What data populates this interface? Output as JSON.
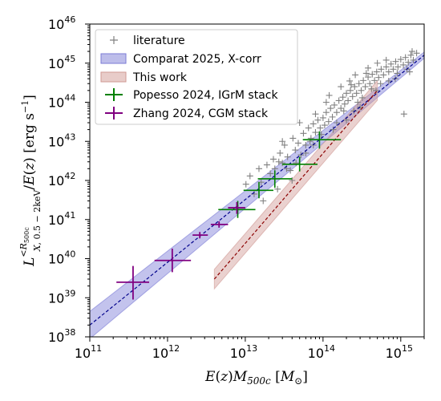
{
  "chart_data": {
    "type": "scatter",
    "x_scale": "log",
    "y_scale": "log",
    "xlim": [
      100000000000.0,
      2000000000000000.0
    ],
    "ylim": [
      1e+38,
      1e+46
    ],
    "x_ticks": [
      {
        "base": "10",
        "exp": "11",
        "value": 100000000000.0
      },
      {
        "base": "10",
        "exp": "12",
        "value": 1000000000000.0
      },
      {
        "base": "10",
        "exp": "13",
        "value": 10000000000000.0
      },
      {
        "base": "10",
        "exp": "14",
        "value": 100000000000000.0
      },
      {
        "base": "10",
        "exp": "15",
        "value": 1000000000000000.0
      }
    ],
    "y_ticks": [
      {
        "base": "10",
        "exp": "38",
        "value": 1e+38
      },
      {
        "base": "10",
        "exp": "39",
        "value": 1e+39
      },
      {
        "base": "10",
        "exp": "40",
        "value": 1e+40
      },
      {
        "base": "10",
        "exp": "41",
        "value": 1e+41
      },
      {
        "base": "10",
        "exp": "42",
        "value": 1e+42
      },
      {
        "base": "10",
        "exp": "43",
        "value": 1e+43
      },
      {
        "base": "10",
        "exp": "44",
        "value": 1e+44
      },
      {
        "base": "10",
        "exp": "45",
        "value": 1e+45
      },
      {
        "base": "10",
        "exp": "46",
        "value": 1e+46
      }
    ],
    "xlabel": "E(z)M_500c [M_⊙]",
    "ylabel": "L_X, 0.5-2keV^(<R_500c) / E(z) [erg s^-1]",
    "legend_position": "top-left",
    "legend": [
      {
        "label": "literature",
        "marker": "plus",
        "color": "#808080"
      },
      {
        "label": "Comparat 2025, X-corr",
        "marker": "band",
        "color": "#7b7bd6"
      },
      {
        "label": "This work",
        "marker": "band",
        "color": "#d19a94"
      },
      {
        "label": "Popesso 2024, IGrM stack",
        "marker": "errorbar",
        "color": "#008000"
      },
      {
        "label": "Zhang 2024, CGM stack",
        "marker": "errorbar",
        "color": "#800080"
      }
    ],
    "comparat_band": {
      "x": [
        100000000000.0,
        2000000000000000.0
      ],
      "y_center": [
        2e+38,
        1.6e+45
      ],
      "dex_halfwidth": [
        0.35,
        0.08
      ],
      "line_color": "#00008b",
      "fill_color": "#7b7bd6"
    },
    "this_work_band": {
      "x": [
        4000000000000.0,
        500000000000000.0
      ],
      "y_center": [
        3e+39,
        2e+44
      ],
      "dex_halfwidth": 0.25,
      "line_color": "#8b0000",
      "fill_color": "#d19a94"
    },
    "popesso_points": [
      {
        "x": 8000000000000.0,
        "y": 1.8e+41,
        "xerr_lo": 4500000000000.0,
        "xerr_hi": 13500000000000.0,
        "yerr_lo": 1.1e+41,
        "yerr_hi": 3e+41
      },
      {
        "x": 15000000000000.0,
        "y": 5.6e+41,
        "xerr_lo": 9500000000000.0,
        "xerr_hi": 23000000000000.0,
        "yerr_lo": 3.5e+41,
        "yerr_hi": 9e+41
      },
      {
        "x": 24000000000000.0,
        "y": 1.1e+42,
        "xerr_lo": 14500000000000.0,
        "xerr_hi": 40000000000000.0,
        "yerr_lo": 6.5e+41,
        "yerr_hi": 1.8e+42
      },
      {
        "x": 50000000000000.0,
        "y": 2.6e+42,
        "xerr_lo": 30000000000000.0,
        "xerr_hi": 85000000000000.0,
        "yerr_lo": 1.7e+42,
        "yerr_hi": 4e+42
      },
      {
        "x": 90000000000000.0,
        "y": 1.1e+43,
        "xerr_lo": 55000000000000.0,
        "xerr_hi": 170000000000000.0,
        "yerr_lo": 6.5e+42,
        "yerr_hi": 1.8e+43
      }
    ],
    "zhang_points": [
      {
        "x": 360000000000.0,
        "y": 2.5e+39,
        "xerr_lo": 220000000000.0,
        "xerr_hi": 580000000000.0,
        "yerr_lo": 9e+38,
        "yerr_hi": 6.5e+39
      },
      {
        "x": 1150000000000.0,
        "y": 9e+39,
        "xerr_lo": 680000000000.0,
        "xerr_hi": 2000000000000.0,
        "yerr_lo": 4.5e+39,
        "yerr_hi": 1.8e+40
      },
      {
        "x": 2600000000000.0,
        "y": 4e+40,
        "xerr_lo": 2100000000000.0,
        "xerr_hi": 3300000000000.0,
        "yerr_lo": 3.3e+40,
        "yerr_hi": 4.8e+40
      },
      {
        "x": 4600000000000.0,
        "y": 7.5e+40,
        "xerr_lo": 3600000000000.0,
        "xerr_hi": 6000000000000.0,
        "yerr_lo": 6.2e+40,
        "yerr_hi": 9e+40
      },
      {
        "x": 7800000000000.0,
        "y": 2e+41,
        "xerr_lo": 6000000000000.0,
        "xerr_hi": 10000000000000.0,
        "yerr_lo": 1.4e+41,
        "yerr_hi": 2.8e+41
      }
    ],
    "literature_points": [
      [
        10200000000000.0,
        8e+41
      ],
      [
        11500000000000.0,
        1.3e+42
      ],
      [
        13000000000000.0,
        4.5e+41
      ],
      [
        15000000000000.0,
        2e+42
      ],
      [
        17000000000000.0,
        3e+41
      ],
      [
        19000000000000.0,
        2.5e+42
      ],
      [
        21000000000000.0,
        1.5e+42
      ],
      [
        23000000000000.0,
        3.5e+42
      ],
      [
        26000000000000.0,
        6e+41
      ],
      [
        28000000000000.0,
        5e+42
      ],
      [
        30000000000000.0,
        2.8e+42
      ],
      [
        32000000000000.0,
        8e+42
      ],
      [
        35000000000000.0,
        4e+42
      ],
      [
        38000000000000.0,
        1.8e+42
      ],
      [
        41000000000000.0,
        1.2e+43
      ],
      [
        44000000000000.0,
        6e+42
      ],
      [
        48000000000000.0,
        9e+42
      ],
      [
        52000000000000.0,
        4.5e+42
      ],
      [
        56000000000000.0,
        1.6e+43
      ],
      [
        60000000000000.0,
        8e+42
      ],
      [
        65000000000000.0,
        2.2e+43
      ],
      [
        70000000000000.0,
        1.2e+43
      ],
      [
        75000000000000.0,
        2.8e+43
      ],
      [
        80000000000000.0,
        1.7e+43
      ],
      [
        86000000000000.0,
        3.5e+43
      ],
      [
        92000000000000.0,
        2.2e+43
      ],
      [
        100000000000000.0,
        4e+43
      ],
      [
        105000000000000.0,
        2.6e+43
      ],
      [
        110000000000000.0,
        5.5e+43
      ],
      [
        118000000000000.0,
        3.2e+43
      ],
      [
        125000000000000.0,
        7e+43
      ],
      [
        132000000000000.0,
        4.2e+43
      ],
      [
        140000000000000.0,
        8.5e+43
      ],
      [
        150000000000000.0,
        5.5e+43
      ],
      [
        160000000000000.0,
        1.1e+44
      ],
      [
        170000000000000.0,
        7e+43
      ],
      [
        180000000000000.0,
        1.35e+44
      ],
      [
        190000000000000.0,
        9e+43
      ],
      [
        200000000000000.0,
        1.7e+44
      ],
      [
        210000000000000.0,
        1.1e+44
      ],
      [
        225000000000000.0,
        2e+44
      ],
      [
        240000000000000.0,
        1.4e+44
      ],
      [
        255000000000000.0,
        2.5e+44
      ],
      [
        270000000000000.0,
        1.7e+44
      ],
      [
        290000000000000.0,
        3e+44
      ],
      [
        310000000000000.0,
        2e+44
      ],
      [
        330000000000000.0,
        3.6e+44
      ],
      [
        350000000000000.0,
        2.5e+44
      ],
      [
        380000000000000.0,
        4.4e+44
      ],
      [
        400000000000000.0,
        3e+44
      ],
      [
        430000000000000.0,
        5.2e+44
      ],
      [
        460000000000000.0,
        3.6e+44
      ],
      [
        490000000000000.0,
        6e+44
      ],
      [
        520000000000000.0,
        4.3e+44
      ],
      [
        560000000000000.0,
        7e+44
      ],
      [
        600000000000000.0,
        5e+44
      ],
      [
        650000000000000.0,
        8e+44
      ],
      [
        700000000000000.0,
        6e+44
      ],
      [
        750000000000000.0,
        9.5e+44
      ],
      [
        800000000000000.0,
        7e+44
      ],
      [
        860000000000000.0,
        1.1e+45
      ],
      [
        920000000000000.0,
        8e+44
      ],
      [
        1000000000000000.0,
        1.25e+45
      ],
      [
        1080000000000000.0,
        9e+44
      ],
      [
        1150000000000000.0,
        1.4e+45
      ],
      [
        1250000000000000.0,
        1.05e+45
      ],
      [
        1350000000000000.0,
        1.6e+45
      ],
      [
        1450000000000000.0,
        1.2e+45
      ],
      [
        1600000000000000.0,
        1.8e+45
      ],
      [
        1100000000000000.0,
        5e+43
      ],
      [
        150000000000000.0,
        3e+43
      ],
      [
        200000000000000.0,
        3.5e+43
      ],
      [
        250000000000000.0,
        6e+43
      ],
      [
        300000000000000.0,
        7.5e+43
      ],
      [
        60000000000000.0,
        5e+42
      ],
      [
        40000000000000.0,
        1e+42
      ],
      [
        30000000000000.0,
        1e+43
      ],
      [
        50000000000000.0,
        3e+43
      ],
      [
        80000000000000.0,
        5e+43
      ],
      [
        120000000000000.0,
        1.5e+44
      ],
      [
        220000000000000.0,
        3.5e+44
      ],
      [
        320000000000000.0,
        1.3e+44
      ],
      [
        420000000000000.0,
        2.2e+44
      ],
      [
        550000000000000.0,
        3e+44
      ],
      [
        700000000000000.0,
        3.5e+44
      ],
      [
        900000000000000.0,
        5.5e+44
      ],
      [
        1200000000000000.0,
        7e+44
      ],
      [
        1400000000000000.0,
        2e+45
      ],
      [
        650000000000000.0,
        1.2e+45
      ],
      [
        380000000000000.0,
        7.5e+44
      ],
      [
        260000000000000.0,
        5e+44
      ],
      [
        170000000000000.0,
        2.5e+44
      ],
      [
        110000000000000.0,
        1e+44
      ],
      [
        75000000000000.0,
        8e+42
      ],
      [
        24000000000000.0,
        2e+42
      ],
      [
        16000000000000.0,
        9e+41
      ],
      [
        27000000000000.0,
        3e+42
      ],
      [
        34000000000000.0,
        2e+42
      ],
      [
        45000000000000.0,
        2.8e+42
      ],
      [
        68000000000000.0,
        1e+43
      ],
      [
        95000000000000.0,
        1.5e+43
      ],
      [
        135000000000000.0,
        2e+43
      ],
      [
        185000000000000.0,
        6e+43
      ],
      [
        280000000000000.0,
        1e+44
      ],
      [
        480000000000000.0,
        2e+44
      ],
      [
        850000000000000.0,
        4e+44
      ],
      [
        1300000000000000.0,
        6e+44
      ],
      [
        500000000000000.0,
        1e+45
      ],
      [
        360000000000000.0,
        5.5e+44
      ],
      [
        230000000000000.0,
        2.8e+44
      ]
    ]
  }
}
